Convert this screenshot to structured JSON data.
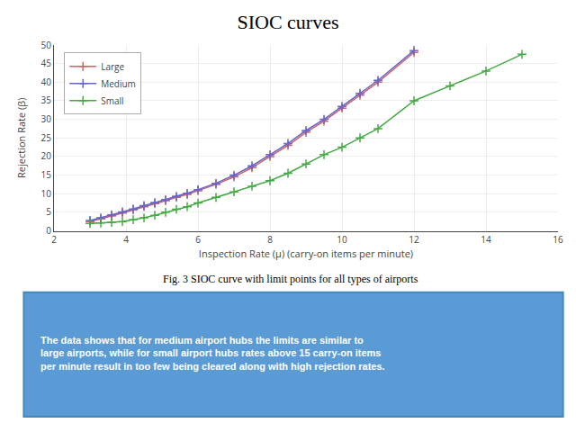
{
  "chart_data": {
    "type": "line",
    "title": "SIOC curves",
    "xlabel": "Inspection Rate (μ) (carry-on items per minute)",
    "ylabel": "Rejection Rate (β)",
    "annotations": [
      "Fig. 3 SIOC curve with limit points for all types of airports",
      "The data shows that for medium airport hubs the limits are similar to\nlarge airports, while for small airport hubs rates above 15 carry-on items\nper minute result in too few being cleared along with high rejection rates."
    ],
    "xlim": [
      2,
      16
    ],
    "ylim": [
      0,
      50
    ],
    "xticks": [
      2,
      4,
      6,
      8,
      10,
      12,
      14,
      16
    ],
    "yticks": [
      0,
      5,
      10,
      15,
      20,
      25,
      30,
      35,
      40,
      45,
      50
    ],
    "grid": true,
    "legend": "upper left",
    "series": [
      {
        "name": "Large",
        "color": "#cc6666",
        "marker": "plus",
        "line_style": "solid",
        "x": [
          3.0,
          3.3,
          3.6,
          3.9,
          4.2,
          4.5,
          4.8,
          5.1,
          5.4,
          5.7,
          6.0,
          6.5,
          7.0,
          7.5,
          8.0,
          8.5,
          9.0,
          9.5,
          10.0,
          10.5,
          11.0,
          12.0
        ],
        "values": [
          2.5,
          3.2,
          4.0,
          4.8,
          5.6,
          6.5,
          7.3,
          8.1,
          9.0,
          9.8,
          10.8,
          12.5,
          14.5,
          17.0,
          20.0,
          23.0,
          26.5,
          29.5,
          33.0,
          36.5,
          40.0,
          48.0
        ]
      },
      {
        "name": "Medium",
        "color": "#6666cc",
        "marker": "plus",
        "line_style": "solid",
        "x": [
          3.0,
          3.3,
          3.6,
          3.9,
          4.2,
          4.5,
          4.8,
          5.1,
          5.4,
          5.7,
          6.0,
          6.5,
          7.0,
          7.5,
          8.0,
          8.5,
          9.0,
          9.5,
          10.0,
          10.5,
          11.0,
          12.0
        ],
        "values": [
          2.8,
          3.5,
          4.3,
          5.1,
          5.9,
          6.8,
          7.6,
          8.4,
          9.3,
          10.1,
          11.1,
          12.8,
          15.0,
          17.5,
          20.5,
          23.5,
          27.0,
          30.0,
          33.5,
          37.0,
          40.5,
          48.5
        ]
      },
      {
        "name": "Small",
        "color": "#44aa44",
        "marker": "plus",
        "line_style": "solid",
        "x": [
          3.0,
          3.3,
          3.6,
          3.9,
          4.2,
          4.5,
          4.8,
          5.1,
          5.4,
          5.7,
          6.0,
          6.5,
          7.0,
          7.5,
          8.0,
          8.5,
          9.0,
          9.5,
          10.0,
          10.5,
          11.0,
          12.0,
          13.0,
          14.0,
          15.0
        ],
        "values": [
          2.0,
          2.1,
          2.3,
          2.5,
          3.0,
          3.5,
          4.2,
          5.0,
          5.8,
          6.5,
          7.5,
          9.0,
          10.5,
          12.0,
          13.5,
          15.5,
          18.0,
          20.5,
          22.5,
          25.0,
          27.5,
          35.0,
          39.0,
          43.0,
          47.5
        ]
      }
    ]
  }
}
